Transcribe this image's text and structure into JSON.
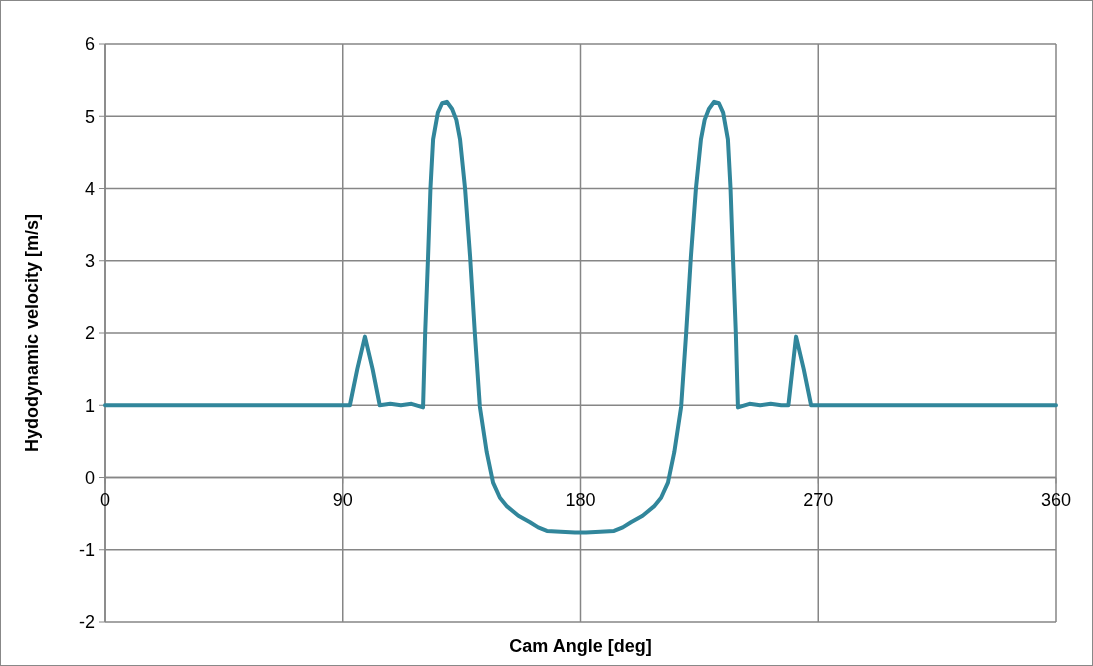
{
  "chart_data": {
    "type": "line",
    "xlabel": "Cam Angle [deg]",
    "ylabel": "Hydodynamic velocity [m/s]",
    "x": [
      0,
      90,
      92.7,
      95.5,
      98.4,
      101.3,
      104,
      108,
      112,
      116,
      120.4,
      121.2,
      122.3,
      123.2,
      124.2,
      126,
      127.6,
      129.4,
      131.4,
      133,
      134.4,
      136.3,
      138.2,
      140,
      141.9,
      144.5,
      146.9,
      149.5,
      152.2,
      156.5,
      160.9,
      164,
      167.3,
      172.5,
      177.9,
      182.1,
      187.5,
      192.7,
      196,
      199.1,
      203.5,
      207.8,
      210.5,
      213.1,
      215.5,
      218.1,
      220,
      221.8,
      223.7,
      225.6,
      227,
      228.6,
      230.6,
      232.4,
      234,
      235.8,
      236.8,
      237.7,
      238.8,
      239.6,
      244,
      248,
      252,
      256,
      258.7,
      261.6,
      264.5,
      267.3,
      270,
      360
    ],
    "series": [
      {
        "color": "#31869b",
        "values": [
          1,
          1,
          1,
          1.5,
          1.95,
          1.5,
          1,
          1.02,
          1,
          1.02,
          0.97,
          2,
          3.06,
          4,
          4.68,
          5.05,
          5.18,
          5.2,
          5.1,
          4.95,
          4.68,
          4,
          3.06,
          2,
          0.98,
          0.35,
          -0.07,
          -0.28,
          -0.4,
          -0.53,
          -0.62,
          -0.69,
          -0.74,
          -0.75,
          -0.76,
          -0.76,
          -0.75,
          -0.74,
          -0.69,
          -0.62,
          -0.53,
          -0.4,
          -0.28,
          -0.07,
          0.35,
          0.98,
          2,
          3.06,
          4,
          4.68,
          4.95,
          5.1,
          5.2,
          5.18,
          5.05,
          4.68,
          4,
          3.06,
          2,
          0.97,
          1.02,
          1,
          1.02,
          1,
          1,
          1.95,
          1.5,
          1,
          1,
          1
        ]
      }
    ],
    "xlim": [
      0,
      360
    ],
    "xticks": [
      0,
      90,
      180,
      270,
      360
    ],
    "ylim": [
      -2,
      6
    ],
    "yticks": [
      -2,
      -1,
      0,
      1,
      2,
      3,
      4,
      5,
      6
    ],
    "grid": true,
    "line_style": "solid",
    "marker": "none"
  }
}
